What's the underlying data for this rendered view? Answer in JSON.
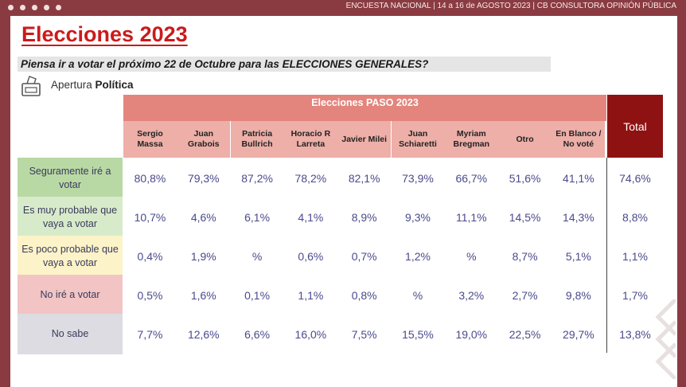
{
  "header": {
    "text": "ENCUESTA NACIONAL | 14 a 16 de AGOSTO 2023 | CB CONSULTORA OPINIÓN PÚBLICA"
  },
  "title": "Elecciones 2023",
  "question": "Piensa ir a votar el próximo 22 de Octubre para las ELECCIONES GENERALES?",
  "source": {
    "prefix": "Apertura",
    "bold": "Política",
    "icon": "ballot-box-icon"
  },
  "table": {
    "group_header": "Elecciones PASO 2023",
    "total_header": "Total",
    "candidates": [
      "Sergio Massa",
      "Juan Grabois",
      "Patricia Bullrich",
      "Horacio R Larreta",
      "Javier Milei",
      "Juan Schiaretti",
      "Myriam Bregman",
      "Otro",
      "En Blanco / No voté"
    ],
    "rows": [
      {
        "label": "Seguramente iré a votar",
        "color": "#b9d9a4",
        "values": [
          "80,8%",
          "79,3%",
          "87,2%",
          "78,2%",
          "82,1%",
          "73,9%",
          "66,7%",
          "51,6%",
          "41,1%"
        ],
        "total": "74,6%"
      },
      {
        "label": "Es muy probable que vaya a votar",
        "color": "#d7ebca",
        "values": [
          "10,7%",
          "4,6%",
          "6,1%",
          "4,1%",
          "8,9%",
          "9,3%",
          "11,1%",
          "14,5%",
          "14,3%"
        ],
        "total": "8,8%"
      },
      {
        "label": "Es poco probable que vaya a votar",
        "color": "#fdf3c8",
        "values": [
          "0,4%",
          "1,9%",
          "%",
          "0,6%",
          "0,7%",
          "1,2%",
          "%",
          "8,7%",
          "5,1%"
        ],
        "total": "1,1%"
      },
      {
        "label": "No iré a votar",
        "color": "#f2c4c4",
        "values": [
          "0,5%",
          "1,6%",
          "0,1%",
          "1,1%",
          "0,8%",
          "%",
          "3,2%",
          "2,7%",
          "9,8%"
        ],
        "total": "1,7%"
      },
      {
        "label": "No sabe",
        "color": "#dcdce2",
        "values": [
          "7,7%",
          "12,6%",
          "6,6%",
          "16,0%",
          "7,5%",
          "15,5%",
          "19,0%",
          "22,5%",
          "29,7%"
        ],
        "total": "13,8%"
      }
    ]
  }
}
